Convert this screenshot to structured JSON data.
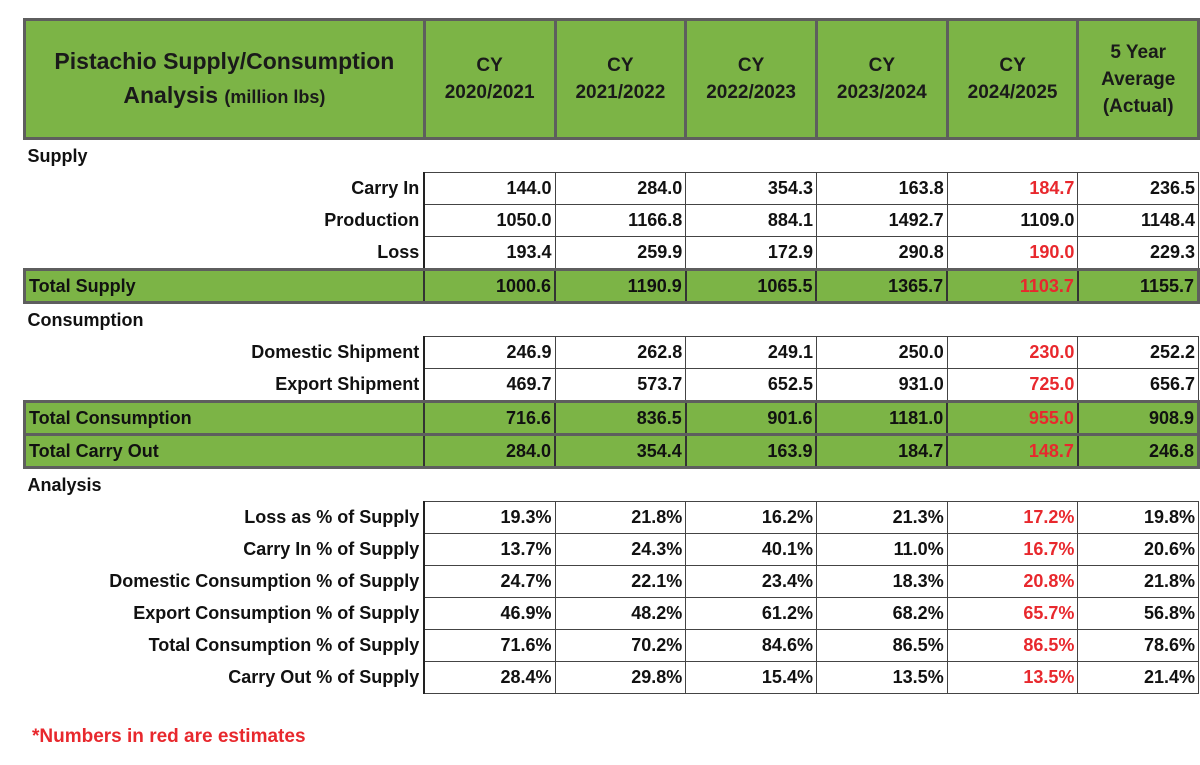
{
  "header": {
    "title_main": "Pistachio Supply/Consumption",
    "title_sub": "Analysis",
    "title_unit": "(million lbs)",
    "columns": [
      {
        "line1": "CY",
        "line2": "2020/2021"
      },
      {
        "line1": "CY",
        "line2": "2021/2022"
      },
      {
        "line1": "CY",
        "line2": "2022/2023"
      },
      {
        "line1": "CY",
        "line2": "2023/2024"
      },
      {
        "line1": "CY",
        "line2": "2024/2025"
      }
    ],
    "avg_col": {
      "line1": "5 Year",
      "line2": "Average",
      "line3": "(Actual)"
    }
  },
  "sections": {
    "supply": "Supply",
    "consumption": "Consumption",
    "analysis": "Analysis"
  },
  "rows": {
    "carry_in": {
      "label": "Carry In",
      "values": [
        "144.0",
        "284.0",
        "354.3",
        "163.8",
        "184.7",
        "236.5"
      ]
    },
    "production": {
      "label": "Production",
      "values": [
        "1050.0",
        "1166.8",
        "884.1",
        "1492.7",
        "1109.0",
        "1148.4"
      ]
    },
    "loss": {
      "label": "Loss",
      "values": [
        "193.4",
        "259.9",
        "172.9",
        "290.8",
        "190.0",
        "229.3"
      ]
    },
    "total_supply": {
      "label": "Total Supply",
      "values": [
        "1000.6",
        "1190.9",
        "1065.5",
        "1365.7",
        "1103.7",
        "1155.7"
      ]
    },
    "domestic_shipment": {
      "label": "Domestic Shipment",
      "values": [
        "246.9",
        "262.8",
        "249.1",
        "250.0",
        "230.0",
        "252.2"
      ]
    },
    "export_shipment": {
      "label": "Export Shipment",
      "values": [
        "469.7",
        "573.7",
        "652.5",
        "931.0",
        "725.0",
        "656.7"
      ]
    },
    "total_consumption": {
      "label": "Total Consumption",
      "values": [
        "716.6",
        "836.5",
        "901.6",
        "1181.0",
        "955.0",
        "908.9"
      ]
    },
    "total_carry_out": {
      "label": "Total Carry Out",
      "values": [
        "284.0",
        "354.4",
        "163.9",
        "184.7",
        "148.7",
        "246.8"
      ]
    },
    "loss_pct": {
      "label": "Loss as % of Supply",
      "values": [
        "19.3%",
        "21.8%",
        "16.2%",
        "21.3%",
        "17.2%",
        "19.8%"
      ]
    },
    "carry_in_pct": {
      "label": "Carry In % of Supply",
      "values": [
        "13.7%",
        "24.3%",
        "40.1%",
        "11.0%",
        "16.7%",
        "20.6%"
      ]
    },
    "domestic_pct": {
      "label": "Domestic Consumption % of Supply",
      "values": [
        "24.7%",
        "22.1%",
        "23.4%",
        "18.3%",
        "20.8%",
        "21.8%"
      ]
    },
    "export_pct": {
      "label": "Export Consumption % of Supply",
      "values": [
        "46.9%",
        "48.2%",
        "61.2%",
        "68.2%",
        "65.7%",
        "56.8%"
      ]
    },
    "total_consumption_pct": {
      "label": "Total Consumption % of Supply",
      "values": [
        "71.6%",
        "70.2%",
        "84.6%",
        "86.5%",
        "86.5%",
        "78.6%"
      ]
    },
    "carry_out_pct": {
      "label": "Carry Out % of Supply",
      "values": [
        "28.4%",
        "29.8%",
        "15.4%",
        "13.5%",
        "13.5%",
        "21.4%"
      ]
    }
  },
  "estimates": {
    "loss_2024_2025": true,
    "domestic_2024_2025_onward": true
  },
  "footnote": "*Numbers in red are estimates",
  "colors": {
    "header_green": "#7cb446",
    "estimate_red": "#e8282d",
    "border_gray": "#5e5e5e"
  }
}
